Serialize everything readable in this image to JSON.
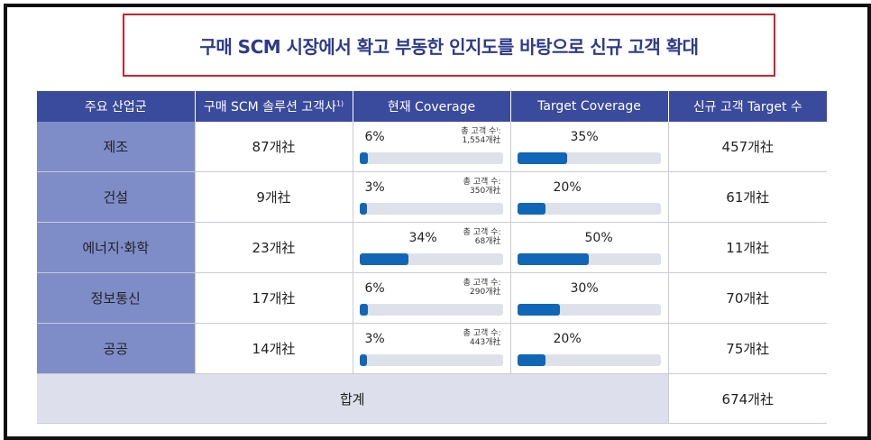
{
  "title": "구매 SCM 시장에서 확고 부동한 인지도를 바탕으로 신규 고객 확대",
  "headers": {
    "industry": "주요 산업군",
    "customers": "구매 SCM 솔루션 고객사",
    "customers_sup": "1)",
    "current": "현재 Coverage",
    "target": "Target Coverage",
    "new": "신규 고객 Target 수"
  },
  "total_label": "총 고객 수:",
  "rows": [
    {
      "industry": "제조",
      "customers": "87개社",
      "current_pct": "6%",
      "current_value": 6,
      "total": "1,554개社",
      "total_label": "총 고객 수⁾:",
      "target_pct": "35%",
      "target_value": 35,
      "new_target": "457개社"
    },
    {
      "industry": "건설",
      "customers": "9개社",
      "current_pct": "3%",
      "current_value": 3,
      "total": "350개社",
      "total_label": "총 고객 수:",
      "target_pct": "20%",
      "target_value": 20,
      "new_target": "61개社"
    },
    {
      "industry": "에너지·화학",
      "customers": "23개社",
      "current_pct": "34%",
      "current_value": 34,
      "total": "68개社",
      "total_label": "총 고객 수:",
      "target_pct": "50%",
      "target_value": 50,
      "new_target": "11개社"
    },
    {
      "industry": "정보통신",
      "customers": "17개社",
      "current_pct": "6%",
      "current_value": 6,
      "total": "290개社",
      "total_label": "총 고객 수:",
      "target_pct": "30%",
      "target_value": 30,
      "new_target": "70개社"
    },
    {
      "industry": "공공",
      "customers": "14개社",
      "current_pct": "3%",
      "current_value": 3,
      "total": "443개社",
      "total_label": "총 고객 수:",
      "target_pct": "20%",
      "target_value": 20,
      "new_target": "75개社"
    }
  ],
  "sum": {
    "label": "합계",
    "value": "674개社"
  },
  "colors": {
    "header_bg": "#3a4a9c",
    "industry_bg": "#7e8dc8",
    "bar": "#1166b8",
    "bar_track": "#dfe1ea",
    "title": "#2e3a8c",
    "title_border": "#d0202a"
  }
}
